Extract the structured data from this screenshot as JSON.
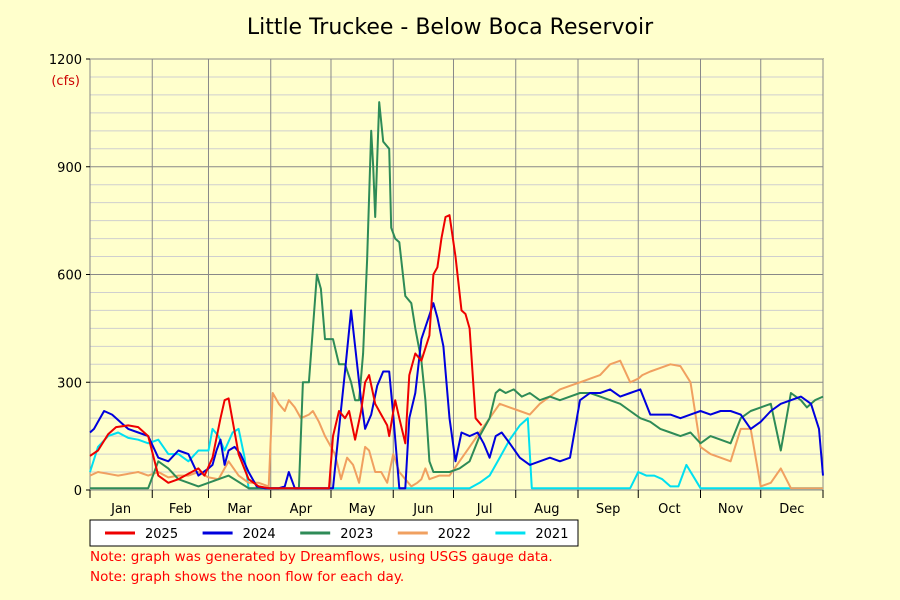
{
  "chart_data": {
    "type": "line",
    "title": "Little Truckee - Below Boca Reservoir",
    "unit": "(cfs)",
    "ylim": [
      0,
      1200
    ],
    "yticks": [
      0,
      300,
      600,
      900,
      1200
    ],
    "xlim": [
      1,
      366
    ],
    "months": [
      "Jan",
      "Feb",
      "Mar",
      "Apr",
      "May",
      "Jun",
      "Jul",
      "Aug",
      "Sep",
      "Oct",
      "Nov",
      "Dec"
    ],
    "grid": true,
    "legend_position": "bottom",
    "series": [
      {
        "name": "2025",
        "color": "#ee0000",
        "x": [
          1,
          5,
          10,
          14,
          20,
          25,
          30,
          35,
          40,
          45,
          50,
          55,
          58,
          62,
          66,
          68,
          70,
          75,
          80,
          85,
          90,
          95,
          100,
          105,
          110,
          115,
          118,
          120,
          122,
          125,
          128,
          130,
          133,
          136,
          138,
          140,
          143,
          146,
          149,
          150,
          153,
          155,
          158,
          160,
          163,
          166,
          170,
          172,
          174,
          176,
          178,
          180,
          183,
          186,
          188,
          190,
          193,
          196
        ],
        "y": [
          95,
          110,
          155,
          175,
          180,
          175,
          150,
          40,
          20,
          30,
          45,
          60,
          40,
          90,
          200,
          250,
          255,
          100,
          30,
          10,
          5,
          5,
          5,
          5,
          5,
          5,
          5,
          5,
          150,
          220,
          200,
          220,
          140,
          220,
          300,
          320,
          240,
          210,
          180,
          150,
          250,
          200,
          130,
          320,
          380,
          360,
          430,
          600,
          620,
          700,
          760,
          765,
          650,
          500,
          490,
          450,
          200,
          180
        ]
      },
      {
        "name": "2024",
        "color": "#0000dd",
        "x": [
          1,
          3,
          5,
          8,
          12,
          15,
          18,
          20,
          25,
          30,
          35,
          40,
          45,
          50,
          55,
          60,
          62,
          64,
          66,
          68,
          70,
          73,
          76,
          80,
          84,
          88,
          92,
          95,
          98,
          100,
          103,
          105,
          110,
          115,
          118,
          120,
          122,
          125,
          128,
          131,
          134,
          136,
          138,
          141,
          144,
          147,
          150,
          152,
          155,
          158,
          160,
          163,
          166,
          169,
          172,
          174,
          177,
          180,
          183,
          186,
          190,
          194,
          197,
          200,
          203,
          206,
          210,
          215,
          220,
          225,
          230,
          235,
          240,
          245,
          250,
          255,
          260,
          265,
          270,
          275,
          280,
          285,
          290,
          295,
          300,
          305,
          310,
          315,
          320,
          325,
          330,
          335,
          340,
          345,
          350,
          355,
          360,
          364,
          366
        ],
        "y": [
          160,
          170,
          190,
          220,
          210,
          195,
          180,
          170,
          160,
          150,
          90,
          80,
          110,
          100,
          40,
          60,
          70,
          110,
          140,
          70,
          110,
          120,
          100,
          50,
          10,
          5,
          5,
          5,
          10,
          50,
          5,
          5,
          5,
          5,
          5,
          5,
          5,
          170,
          330,
          500,
          350,
          250,
          170,
          210,
          290,
          330,
          330,
          210,
          5,
          5,
          200,
          270,
          420,
          470,
          520,
          480,
          400,
          200,
          80,
          160,
          150,
          160,
          130,
          90,
          150,
          160,
          130,
          90,
          70,
          80,
          90,
          80,
          90,
          250,
          270,
          270,
          280,
          260,
          270,
          280,
          210,
          210,
          210,
          200,
          210,
          220,
          210,
          220,
          220,
          210,
          170,
          190,
          220,
          240,
          250,
          260,
          240,
          170,
          40
        ]
      },
      {
        "name": "2023",
        "color": "#2e8b57",
        "x": [
          1,
          10,
          20,
          30,
          35,
          40,
          45,
          50,
          55,
          60,
          70,
          80,
          90,
          95,
          100,
          105,
          107,
          110,
          112,
          114,
          116,
          118,
          120,
          122,
          125,
          128,
          131,
          133,
          135,
          137,
          139,
          141,
          142,
          143,
          145,
          147,
          150,
          151,
          153,
          155,
          158,
          161,
          163,
          166,
          168,
          170,
          172,
          176,
          180,
          185,
          190,
          195,
          200,
          203,
          205,
          208,
          212,
          216,
          220,
          225,
          230,
          235,
          240,
          245,
          250,
          255,
          260,
          265,
          270,
          275,
          280,
          285,
          290,
          295,
          300,
          305,
          310,
          315,
          320,
          325,
          330,
          335,
          340,
          345,
          350,
          355,
          358,
          360,
          362,
          364,
          366
        ],
        "y": [
          5,
          5,
          5,
          5,
          80,
          60,
          30,
          20,
          10,
          20,
          40,
          5,
          5,
          5,
          5,
          5,
          300,
          300,
          450,
          600,
          560,
          420,
          420,
          420,
          350,
          350,
          300,
          250,
          250,
          380,
          640,
          1000,
          900,
          760,
          1080,
          970,
          950,
          730,
          700,
          690,
          540,
          520,
          450,
          360,
          250,
          80,
          50,
          50,
          50,
          60,
          80,
          150,
          200,
          270,
          280,
          270,
          280,
          260,
          270,
          250,
          260,
          250,
          260,
          270,
          270,
          260,
          250,
          240,
          220,
          200,
          190,
          170,
          160,
          150,
          160,
          130,
          150,
          140,
          130,
          200,
          220,
          230,
          240,
          110,
          270,
          250,
          230,
          240,
          250,
          255,
          260
        ]
      },
      {
        "name": "2022",
        "color": "#f0a060",
        "x": [
          1,
          5,
          10,
          15,
          20,
          25,
          30,
          35,
          40,
          45,
          50,
          55,
          60,
          65,
          70,
          75,
          80,
          85,
          90,
          92,
          95,
          98,
          100,
          103,
          106,
          110,
          112,
          115,
          118,
          120,
          123,
          126,
          129,
          132,
          135,
          138,
          140,
          143,
          146,
          149,
          152,
          155,
          158,
          161,
          164,
          166,
          168,
          170,
          175,
          180,
          185,
          190,
          195,
          200,
          205,
          210,
          215,
          220,
          225,
          230,
          235,
          240,
          245,
          250,
          255,
          260,
          265,
          270,
          274,
          276,
          280,
          285,
          290,
          295,
          300,
          305,
          310,
          315,
          320,
          325,
          330,
          335,
          340,
          345,
          350,
          355,
          360,
          366
        ],
        "y": [
          40,
          50,
          45,
          40,
          45,
          50,
          40,
          50,
          35,
          40,
          40,
          50,
          35,
          30,
          80,
          40,
          20,
          20,
          10,
          270,
          240,
          220,
          250,
          230,
          200,
          210,
          220,
          190,
          150,
          130,
          100,
          30,
          90,
          70,
          20,
          120,
          110,
          50,
          50,
          20,
          100,
          50,
          30,
          10,
          20,
          30,
          60,
          30,
          40,
          40,
          80,
          120,
          160,
          200,
          240,
          230,
          220,
          210,
          240,
          260,
          280,
          290,
          300,
          310,
          320,
          350,
          360,
          300,
          310,
          320,
          330,
          340,
          350,
          345,
          300,
          120,
          100,
          90,
          80,
          170,
          170,
          10,
          20,
          60,
          5,
          5,
          5,
          5
        ]
      },
      {
        "name": "2021",
        "color": "#00e0f0",
        "x": [
          1,
          5,
          10,
          15,
          20,
          25,
          30,
          35,
          40,
          45,
          50,
          55,
          60,
          62,
          65,
          68,
          72,
          75,
          78,
          80,
          85,
          90,
          100,
          110,
          120,
          130,
          140,
          150,
          160,
          170,
          180,
          190,
          195,
          200,
          205,
          210,
          215,
          219,
          221,
          230,
          240,
          250,
          260,
          270,
          274,
          278,
          282,
          286,
          290,
          294,
          298,
          305,
          315,
          325,
          335,
          345,
          355,
          366
        ],
        "y": [
          50,
          120,
          150,
          160,
          145,
          140,
          130,
          140,
          100,
          100,
          80,
          110,
          110,
          170,
          150,
          110,
          160,
          170,
          90,
          5,
          5,
          5,
          5,
          5,
          5,
          5,
          5,
          5,
          5,
          5,
          5,
          5,
          20,
          40,
          90,
          140,
          180,
          200,
          5,
          5,
          5,
          5,
          5,
          5,
          50,
          40,
          40,
          30,
          10,
          10,
          70,
          5,
          5,
          5,
          5,
          5,
          5,
          5
        ]
      }
    ]
  },
  "notes": [
    "Note: graph was generated by Dreamflows, using USGS gauge data.",
    "Note: graph shows the noon flow for each day."
  ]
}
